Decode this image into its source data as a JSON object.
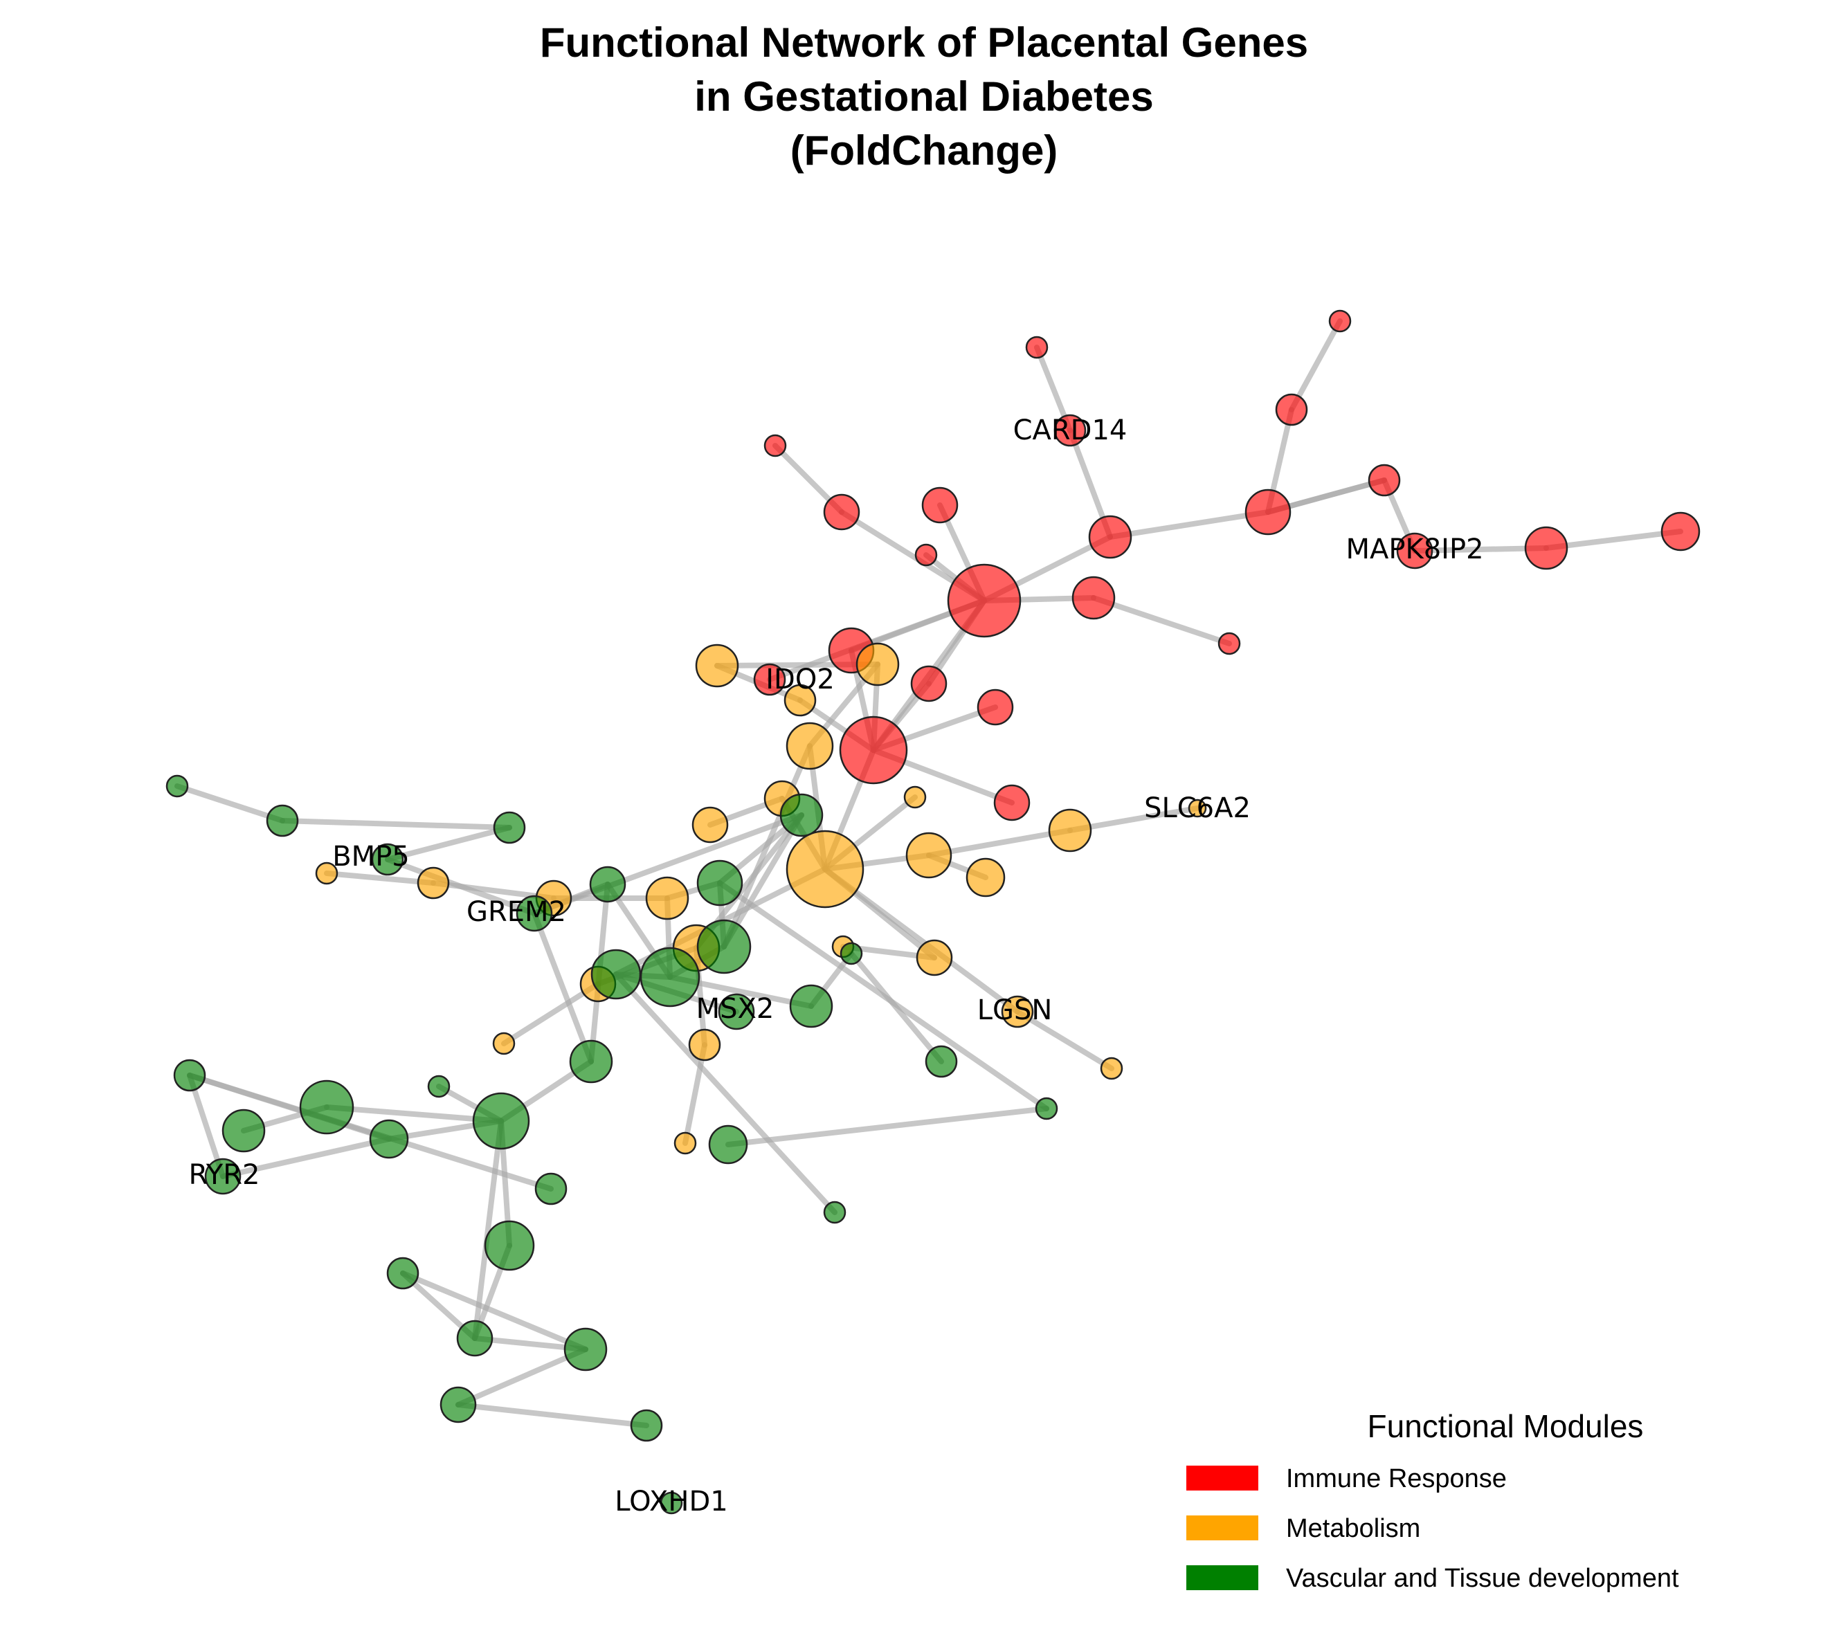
{
  "title": {
    "line1": "Functional Network of Placental Genes",
    "line2": "in Gestational Diabetes",
    "line3": "(FoldChange)"
  },
  "legend": {
    "title": "Functional Modules",
    "items": [
      {
        "label": "Immune Response",
        "color": "#ff0000"
      },
      {
        "label": "Metabolism",
        "color": "#ffa500"
      },
      {
        "label": "Vascular and Tissue development",
        "color": "#008000"
      }
    ]
  },
  "modules": {
    "Immune Response": "#ff0000",
    "Metabolism": "#ffa500",
    "Vascular and Tissue development": "#008000"
  },
  "gene_labels": [
    "CARD14",
    "MAPK8IP2",
    "IDO2",
    "SLC6A2",
    "BMP5",
    "GREM2",
    "MSX2",
    "LGSN",
    "RYR2",
    "LOXHD1"
  ]
}
